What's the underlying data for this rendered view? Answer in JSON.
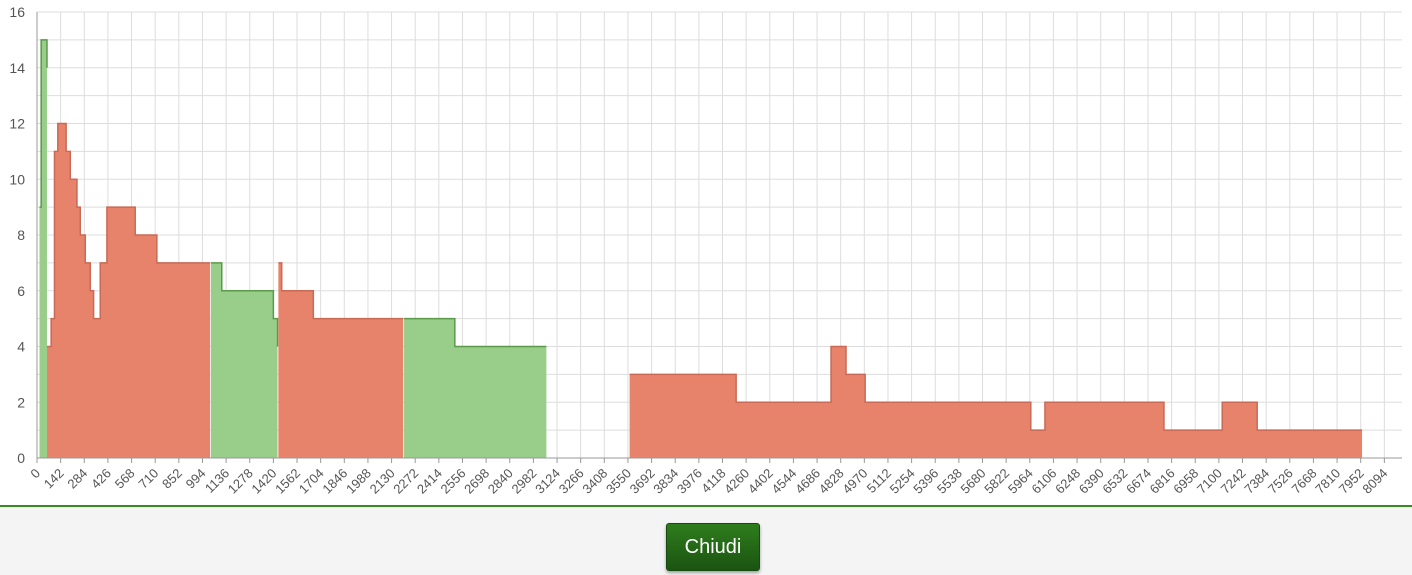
{
  "chart_data": {
    "type": "area",
    "x_range": [
      0,
      8200
    ],
    "ylim": [
      0,
      16
    ],
    "y_ticks": [
      0,
      2,
      4,
      6,
      8,
      10,
      12,
      14,
      16
    ],
    "x_ticks": [
      0,
      142,
      284,
      426,
      568,
      710,
      852,
      994,
      1136,
      1278,
      1420,
      1562,
      1704,
      1846,
      1988,
      2130,
      2272,
      2414,
      2556,
      2698,
      2840,
      2982,
      3124,
      3266,
      3408,
      3550,
      3692,
      3834,
      3976,
      4118,
      4260,
      4402,
      4544,
      4686,
      4828,
      4970,
      5112,
      5254,
      5396,
      5538,
      5680,
      5822,
      5964,
      6106,
      6248,
      6390,
      6532,
      6674,
      6816,
      6958,
      7100,
      7242,
      7384,
      7526,
      7668,
      7810,
      7952,
      8094
    ],
    "grid": true,
    "colors": {
      "red": "#e8836b",
      "green": "#98cd8a",
      "green_line": "#5a9a4a"
    },
    "segments": [
      {
        "color": "green",
        "points": [
          [
            15,
            9
          ],
          [
            25,
            15
          ],
          [
            50,
            15
          ],
          [
            60,
            14
          ]
        ]
      },
      {
        "color": "red",
        "points": [
          [
            60,
            4
          ],
          [
            75,
            4
          ],
          [
            85,
            5
          ],
          [
            105,
            11
          ],
          [
            125,
            12
          ],
          [
            160,
            12
          ],
          [
            175,
            11
          ],
          [
            200,
            10
          ],
          [
            240,
            9
          ],
          [
            260,
            8
          ],
          [
            290,
            7
          ],
          [
            310,
            7
          ],
          [
            320,
            6
          ],
          [
            340,
            5
          ],
          [
            360,
            5
          ],
          [
            380,
            7
          ],
          [
            400,
            7
          ],
          [
            420,
            9
          ],
          [
            560,
            9
          ],
          [
            590,
            8
          ],
          [
            700,
            8
          ],
          [
            720,
            7
          ],
          [
            1040,
            7
          ]
        ]
      },
      {
        "color": "green",
        "points": [
          [
            1045,
            7
          ],
          [
            1100,
            7
          ],
          [
            1110,
            6
          ],
          [
            1410,
            6
          ],
          [
            1420,
            5
          ],
          [
            1445,
            4
          ]
        ]
      },
      {
        "color": "red",
        "points": [
          [
            1450,
            7
          ],
          [
            1470,
            6
          ],
          [
            1640,
            6
          ],
          [
            1660,
            5
          ],
          [
            2200,
            5
          ]
        ]
      },
      {
        "color": "green",
        "points": [
          [
            2205,
            5
          ],
          [
            2490,
            5
          ],
          [
            2510,
            4
          ],
          [
            3060,
            4
          ]
        ]
      },
      {
        "color": "red",
        "points": [
          [
            3560,
            3
          ],
          [
            4180,
            3
          ],
          [
            4200,
            2
          ],
          [
            4760,
            2
          ],
          [
            4770,
            4
          ],
          [
            4840,
            4
          ],
          [
            4860,
            3
          ],
          [
            4960,
            3
          ],
          [
            4975,
            2
          ],
          [
            5960,
            2
          ],
          [
            5970,
            1
          ],
          [
            6045,
            1
          ],
          [
            6055,
            2
          ],
          [
            6750,
            2
          ],
          [
            6770,
            1
          ],
          [
            7110,
            1
          ],
          [
            7120,
            2
          ],
          [
            7320,
            2
          ],
          [
            7330,
            1
          ],
          [
            7960,
            1
          ]
        ]
      }
    ]
  },
  "footer": {
    "close_label": "Chiudi"
  }
}
